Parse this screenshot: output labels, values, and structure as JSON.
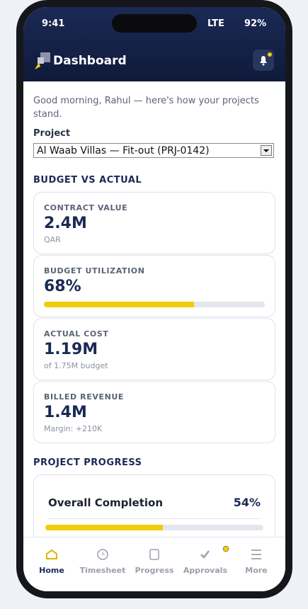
{
  "status_bar": {
    "time": "9:41",
    "network": "LTE",
    "battery": "92%"
  },
  "header": {
    "title": "Dashboard"
  },
  "greeting": "Good morning, Rahul — here's how your projects stand.",
  "project_picker": {
    "label": "Project",
    "selected": "Al Waab Villas — Fit-out (PRJ-0142)"
  },
  "budget_section": {
    "title": "BUDGET VS ACTUAL",
    "cards": [
      {
        "label": "CONTRACT VALUE",
        "value": "2.4M",
        "note": "QAR"
      },
      {
        "label": "BUDGET UTILIZATION",
        "value": 68,
        "value_label": "68%"
      },
      {
        "label": "ACTUAL COST",
        "value": "1.19M",
        "note": "of 1.75M budget"
      },
      {
        "label": "BILLED REVENUE",
        "value": "1.4M",
        "note": "Margin: +210K"
      }
    ]
  },
  "progress_section": {
    "title": "PROJECT PROGRESS",
    "label": "Overall Completion",
    "value": 54,
    "value_label": "54%"
  },
  "nav": [
    "Home",
    "Timesheet",
    "Progress",
    "Approvals",
    "More"
  ]
}
